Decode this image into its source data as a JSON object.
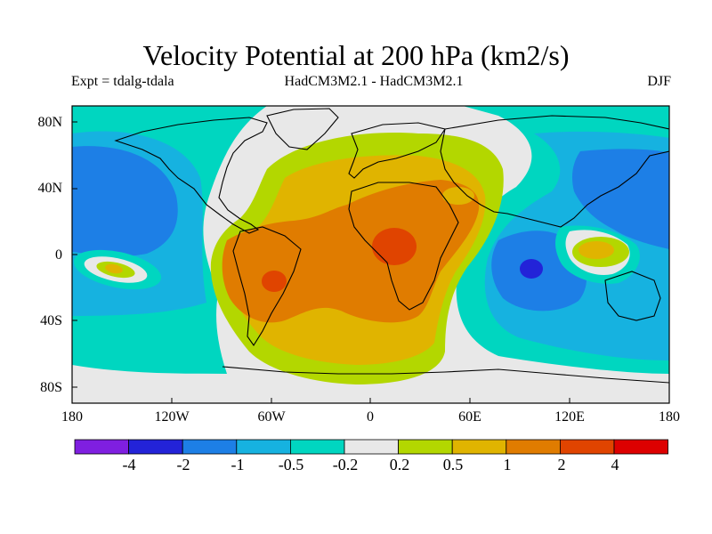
{
  "title": "Velocity Potential at 200 hPa (km2/s)",
  "left_subtitle": "Expt = tdalg-tdala",
  "center_subtitle": "HadCM3M2.1 - HadCM3M2.1",
  "right_subtitle": "DJF",
  "y_axis": {
    "ticks": [
      "80N",
      "40N",
      "0",
      "40S",
      "80S"
    ]
  },
  "x_axis": {
    "ticks": [
      "180",
      "120W",
      "60W",
      "0",
      "60E",
      "120E",
      "180"
    ]
  },
  "colorbar": {
    "labels": [
      "-4",
      "-2",
      "-1",
      "-0.5",
      "-0.2",
      "0.2",
      "0.5",
      "1",
      "2",
      "4"
    ],
    "colors": [
      "#7f1fe0",
      "#2323d8",
      "#1d7fe6",
      "#16b2e0",
      "#00d6c0",
      "#e8e8e8",
      "#b3d700",
      "#e0b400",
      "#e07c00",
      "#e04400",
      "#dd0000"
    ]
  },
  "map_colors": {
    "background": "#e8e8e8",
    "vlight_blue": "#00d6c0",
    "light_blue": "#16b2e0",
    "mid_blue": "#1d7fe6",
    "dark_blue": "#2323d8",
    "yellow_green": "#b3d700",
    "gold": "#e0b400",
    "orange": "#e07c00",
    "red_orange": "#e04400"
  }
}
